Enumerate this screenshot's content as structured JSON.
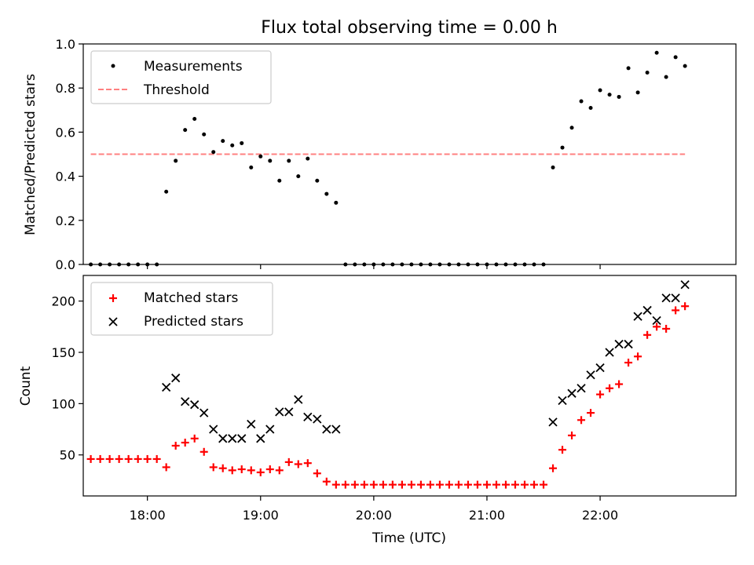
{
  "title": "Flux total observing time = 0.00 h",
  "colors": {
    "measurement": "#000000",
    "threshold": "#ff8080",
    "matched": "#ff0000",
    "predicted": "#000000"
  },
  "chart_data": [
    {
      "type": "scatter",
      "panel": "top",
      "title": "Flux total observing time = 0.00 h",
      "xlabel": "",
      "ylabel": "Matched/Predicted stars",
      "xlim": [
        "17:26",
        "23:12"
      ],
      "ylim": [
        0,
        1.0
      ],
      "yticks": [
        "0.0",
        "0.2",
        "0.4",
        "0.6",
        "0.8",
        "1.0"
      ],
      "grid": false,
      "legend_position": "upper left",
      "legend": [
        "Measurements",
        "Threshold"
      ],
      "threshold": {
        "value": 0.5,
        "x_start": "17:30",
        "x_end": "22:45",
        "style": "dashed"
      },
      "series": [
        {
          "name": "Measurements",
          "marker": "dot",
          "x": [
            "17:30",
            "17:35",
            "17:40",
            "17:45",
            "17:50",
            "17:55",
            "18:00",
            "18:05",
            "18:10",
            "18:15",
            "18:20",
            "18:25",
            "18:30",
            "18:35",
            "18:40",
            "18:45",
            "18:50",
            "18:55",
            "19:00",
            "19:05",
            "19:10",
            "19:15",
            "19:20",
            "19:25",
            "19:30",
            "19:35",
            "19:40",
            "19:45",
            "19:50",
            "19:55",
            "20:00",
            "20:05",
            "20:10",
            "20:15",
            "20:20",
            "20:25",
            "20:30",
            "20:35",
            "20:40",
            "20:45",
            "20:50",
            "20:55",
            "21:00",
            "21:05",
            "21:10",
            "21:15",
            "21:20",
            "21:25",
            "21:30",
            "21:35",
            "21:40",
            "21:45",
            "21:50",
            "21:55",
            "22:00",
            "22:05",
            "22:10",
            "22:15",
            "22:20",
            "22:25",
            "22:30",
            "22:35",
            "22:40",
            "22:45"
          ],
          "y": [
            0,
            0,
            0,
            0,
            0,
            0,
            0,
            0,
            0.33,
            0.47,
            0.61,
            0.66,
            0.59,
            0.51,
            0.56,
            0.54,
            0.55,
            0.44,
            0.49,
            0.47,
            0.38,
            0.47,
            0.4,
            0.48,
            0.38,
            0.32,
            0.28,
            0,
            0,
            0,
            0,
            0,
            0,
            0,
            0,
            0,
            0,
            0,
            0,
            0,
            0,
            0,
            0,
            0,
            0,
            0,
            0,
            0,
            0,
            0.44,
            0.53,
            0.62,
            0.74,
            0.71,
            0.79,
            0.77,
            0.76,
            0.89,
            0.78,
            0.87,
            0.96,
            0.85,
            0.94,
            0.9
          ]
        }
      ]
    },
    {
      "type": "scatter",
      "panel": "bottom",
      "xlabel": "Time (UTC)",
      "ylabel": "Count",
      "xlim": [
        "17:26",
        "23:12"
      ],
      "ylim": [
        10,
        225
      ],
      "yticks": [
        "50",
        "100",
        "150",
        "200"
      ],
      "xticks": [
        "18:00",
        "19:00",
        "20:00",
        "21:00",
        "22:00"
      ],
      "grid": false,
      "legend_position": "upper left",
      "legend": [
        "Matched stars",
        "Predicted stars"
      ],
      "series": [
        {
          "name": "Matched stars",
          "marker": "plus",
          "x": [
            "17:30",
            "17:35",
            "17:40",
            "17:45",
            "17:50",
            "17:55",
            "18:00",
            "18:05",
            "18:10",
            "18:15",
            "18:20",
            "18:25",
            "18:30",
            "18:35",
            "18:40",
            "18:45",
            "18:50",
            "18:55",
            "19:00",
            "19:05",
            "19:10",
            "19:15",
            "19:20",
            "19:25",
            "19:30",
            "19:35",
            "19:40",
            "19:45",
            "19:50",
            "19:55",
            "20:00",
            "20:05",
            "20:10",
            "20:15",
            "20:20",
            "20:25",
            "20:30",
            "20:35",
            "20:40",
            "20:45",
            "20:50",
            "20:55",
            "21:00",
            "21:05",
            "21:10",
            "21:15",
            "21:20",
            "21:25",
            "21:30",
            "21:35",
            "21:40",
            "21:45",
            "21:50",
            "21:55",
            "22:00",
            "22:05",
            "22:10",
            "22:15",
            "22:20",
            "22:25",
            "22:30",
            "22:35",
            "22:40",
            "22:45"
          ],
          "y": [
            46,
            46,
            46,
            46,
            46,
            46,
            46,
            46,
            38,
            59,
            62,
            66,
            53,
            38,
            37,
            35,
            36,
            35,
            33,
            36,
            35,
            43,
            41,
            42,
            32,
            24,
            21,
            21,
            21,
            21,
            21,
            21,
            21,
            21,
            21,
            21,
            21,
            21,
            21,
            21,
            21,
            21,
            21,
            21,
            21,
            21,
            21,
            21,
            21,
            37,
            55,
            69,
            84,
            91,
            109,
            115,
            119,
            140,
            146,
            167,
            175,
            173,
            191,
            195
          ]
        },
        {
          "name": "Predicted stars",
          "marker": "x",
          "x": [
            "18:10",
            "18:15",
            "18:20",
            "18:25",
            "18:30",
            "18:35",
            "18:40",
            "18:45",
            "18:50",
            "18:55",
            "19:00",
            "19:05",
            "19:10",
            "19:15",
            "19:20",
            "19:25",
            "19:30",
            "19:35",
            "19:40",
            "21:35",
            "21:40",
            "21:45",
            "21:50",
            "21:55",
            "22:00",
            "22:05",
            "22:10",
            "22:15",
            "22:20",
            "22:25",
            "22:30",
            "22:35",
            "22:40",
            "22:45"
          ],
          "y": [
            116,
            125,
            102,
            99,
            91,
            75,
            66,
            66,
            66,
            80,
            66,
            75,
            92,
            92,
            104,
            87,
            85,
            75,
            75,
            82,
            103,
            110,
            115,
            128,
            135,
            150,
            158,
            158,
            185,
            191,
            181,
            203,
            203,
            216
          ]
        }
      ]
    }
  ]
}
